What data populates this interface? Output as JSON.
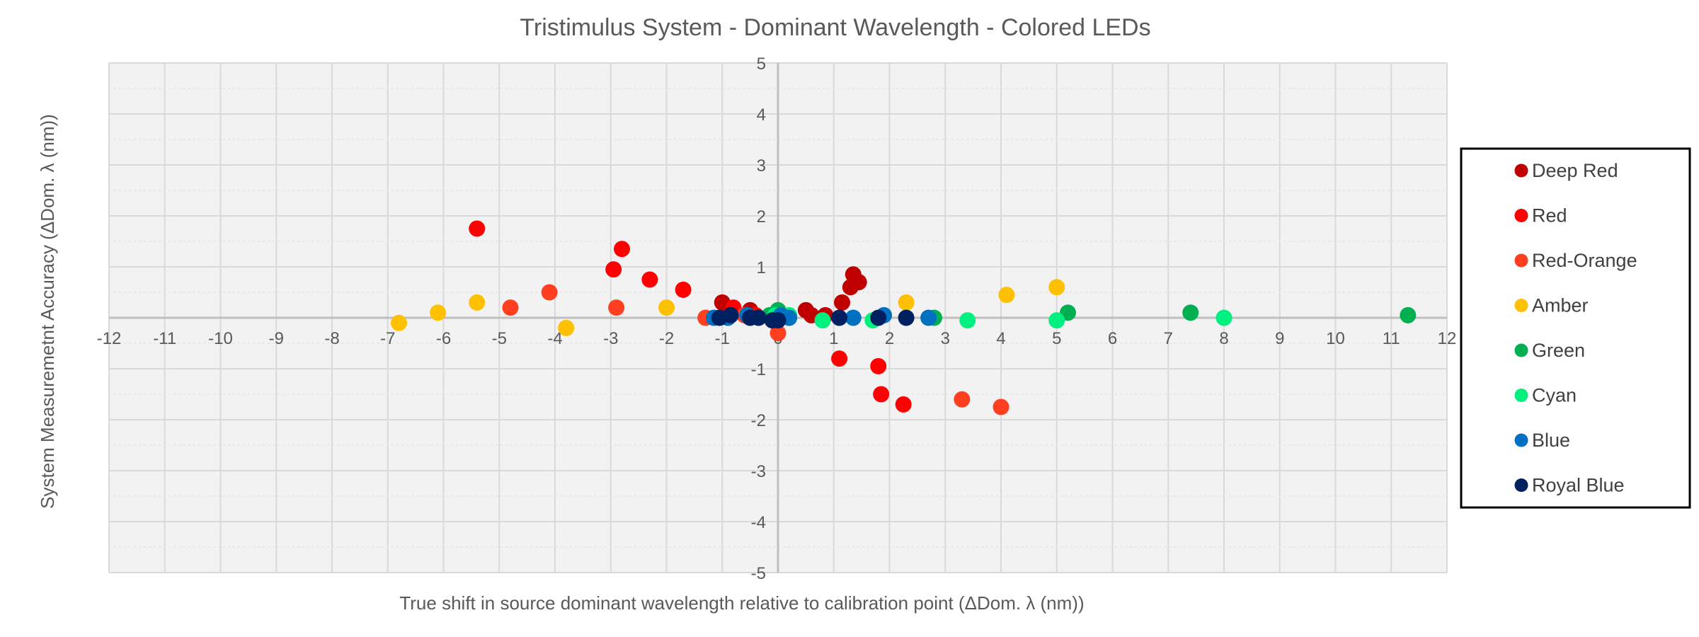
{
  "chart_data": {
    "type": "scatter",
    "title": "Tristimulus System - Dominant Wavelength - Colored LEDs",
    "xlabel": "True shift in source dominant wavelength relative to calibration point (ΔDom. λ (nm))",
    "ylabel": "System Measuremetnt Accuracy (ΔDom.  λ (nm))",
    "xlim": [
      -12,
      12
    ],
    "ylim": [
      -5,
      5
    ],
    "xticks": [
      "-12",
      "-11",
      "-10",
      "-9",
      "-8",
      "-7",
      "-6",
      "-5",
      "-4",
      "-3",
      "-2",
      "-1",
      "0",
      "1",
      "2",
      "3",
      "4",
      "5",
      "6",
      "7",
      "8",
      "9",
      "10",
      "11",
      "12"
    ],
    "yticks": [
      "5",
      "4",
      "3",
      "2",
      "1",
      "0",
      "-1",
      "-2",
      "-3",
      "-4",
      "-5"
    ],
    "grid": true,
    "legend_position": "right",
    "series": [
      {
        "name": "Deep Red",
        "color": "#C00000",
        "points": [
          [
            -1.0,
            0.3
          ],
          [
            -0.5,
            0.15
          ],
          [
            0.5,
            0.15
          ],
          [
            0.6,
            0.05
          ],
          [
            0.85,
            0.05
          ],
          [
            1.15,
            0.3
          ],
          [
            1.3,
            0.6
          ],
          [
            1.35,
            0.85
          ],
          [
            1.45,
            0.7
          ]
        ]
      },
      {
        "name": "Red",
        "color": "#FF0000",
        "points": [
          [
            -5.4,
            1.75
          ],
          [
            -2.95,
            0.95
          ],
          [
            -2.8,
            1.35
          ],
          [
            -2.3,
            0.75
          ],
          [
            -1.7,
            0.55
          ],
          [
            -0.8,
            0.2
          ],
          [
            -0.4,
            0.05
          ],
          [
            1.1,
            -0.8
          ],
          [
            1.8,
            -0.95
          ],
          [
            1.85,
            -1.5
          ],
          [
            2.25,
            -1.7
          ]
        ]
      },
      {
        "name": "Red-Orange",
        "color": "#FF3F1F",
        "points": [
          [
            -4.8,
            0.2
          ],
          [
            -4.1,
            0.5
          ],
          [
            -2.9,
            0.2
          ],
          [
            -1.3,
            0.0
          ],
          [
            -0.6,
            0.05
          ],
          [
            0.0,
            -0.3
          ],
          [
            3.3,
            -1.6
          ],
          [
            4.0,
            -1.75
          ]
        ]
      },
      {
        "name": "Amber",
        "color": "#FFC000",
        "points": [
          [
            -6.8,
            -0.1
          ],
          [
            -6.1,
            0.1
          ],
          [
            -5.4,
            0.3
          ],
          [
            -3.8,
            -0.2
          ],
          [
            -2.0,
            0.2
          ],
          [
            2.3,
            0.3
          ],
          [
            4.1,
            0.45
          ],
          [
            5.0,
            0.6
          ]
        ]
      },
      {
        "name": "Green",
        "color": "#00B050",
        "points": [
          [
            -0.15,
            0.05
          ],
          [
            0.0,
            0.15
          ],
          [
            2.8,
            0.0
          ],
          [
            5.2,
            0.1
          ],
          [
            7.4,
            0.1
          ],
          [
            11.3,
            0.05
          ]
        ]
      },
      {
        "name": "Cyan",
        "color": "#00F07F",
        "points": [
          [
            -0.05,
            0.05
          ],
          [
            0.2,
            0.05
          ],
          [
            0.8,
            -0.05
          ],
          [
            1.7,
            -0.05
          ],
          [
            3.4,
            -0.05
          ],
          [
            5.0,
            -0.05
          ],
          [
            8.0,
            0.0
          ]
        ]
      },
      {
        "name": "Blue",
        "color": "#0070C0",
        "points": [
          [
            -1.15,
            0.0
          ],
          [
            -0.9,
            0.0
          ],
          [
            -0.55,
            0.05
          ],
          [
            0.05,
            0.05
          ],
          [
            0.2,
            0.0
          ],
          [
            1.35,
            0.0
          ],
          [
            1.9,
            0.05
          ],
          [
            2.7,
            0.0
          ]
        ]
      },
      {
        "name": "Royal Blue",
        "color": "#002060",
        "points": [
          [
            -1.05,
            0.0
          ],
          [
            -0.85,
            0.05
          ],
          [
            -0.5,
            0.0
          ],
          [
            -0.35,
            0.0
          ],
          [
            -0.1,
            -0.05
          ],
          [
            0.0,
            -0.05
          ],
          [
            1.1,
            0.0
          ],
          [
            1.8,
            0.0
          ],
          [
            2.3,
            0.0
          ]
        ]
      }
    ]
  }
}
